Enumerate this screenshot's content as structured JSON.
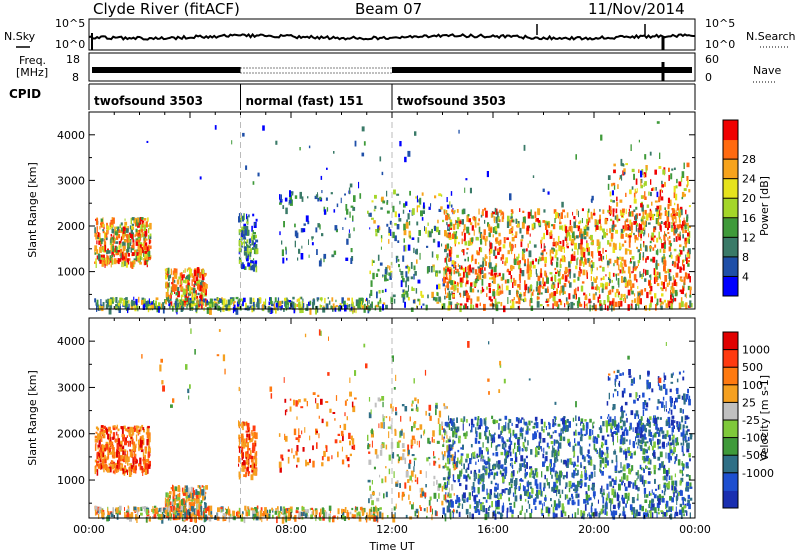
{
  "header": {
    "station": "Clyde River (fitACF)",
    "beam": "Beam 07",
    "date": "11/Nov/2014"
  },
  "strips": {
    "nsky_label": "N.Sky",
    "nsky_ticks": [
      "10^5",
      "10^0"
    ],
    "nsearch_label": "N.Search",
    "nsearch_ticks": [
      "10^5",
      "10^0"
    ],
    "freq_label_line1": "Freq.",
    "freq_label_line2": "[MHz]",
    "freq_ticks": [
      "18",
      "8"
    ],
    "nave_label": "Nave",
    "nave_ticks": [
      "60",
      "0"
    ],
    "cpid_label": "CPID",
    "cpid_segments": [
      {
        "label": "twofsound 3503",
        "start_h": 0,
        "end_h": 6
      },
      {
        "label": "normal (fast) 151",
        "start_h": 6,
        "end_h": 12
      },
      {
        "label": "twofsound 3503",
        "start_h": 12,
        "end_h": 24
      }
    ]
  },
  "chart_data": [
    {
      "type": "heatmap",
      "name": "power",
      "ylabel": "Slant Range [km]",
      "ylim": [
        180,
        4500
      ],
      "yticks": [
        1000,
        2000,
        3000,
        4000
      ],
      "xlim": [
        0,
        24
      ],
      "colorbar": {
        "label": "Power [dB]",
        "ticks": [
          "4",
          "8",
          "12",
          "16",
          "20",
          "24",
          "28"
        ],
        "colors": [
          "#0000ff",
          "#1f4fa8",
          "#3a7a68",
          "#3f9a3a",
          "#a4d629",
          "#e6e31c",
          "#f7a31c",
          "#ff6a10",
          "#f00000"
        ]
      }
    },
    {
      "type": "heatmap",
      "name": "velocity",
      "ylabel": "Slant Range [km]",
      "ylim": [
        180,
        4500
      ],
      "yticks": [
        1000,
        2000,
        3000,
        4000
      ],
      "xlim": [
        0,
        24
      ],
      "xlabel": "Time UT",
      "xticks": [
        "00:00",
        "04:00",
        "08:00",
        "12:00",
        "16:00",
        "20:00",
        "00:00"
      ],
      "colorbar": {
        "label": "Velocity [m s-1]",
        "ticks": [
          "1000",
          "500",
          "100",
          "25",
          "-25",
          "-100",
          "-500",
          "-1000"
        ],
        "colors": [
          "#1a2fb0",
          "#1e4fd0",
          "#2f6f86",
          "#3f9a3a",
          "#7fc93a",
          "#c0c0c0",
          "#f5a020",
          "#ff7a10",
          "#ff3a10",
          "#e00000"
        ]
      }
    }
  ]
}
